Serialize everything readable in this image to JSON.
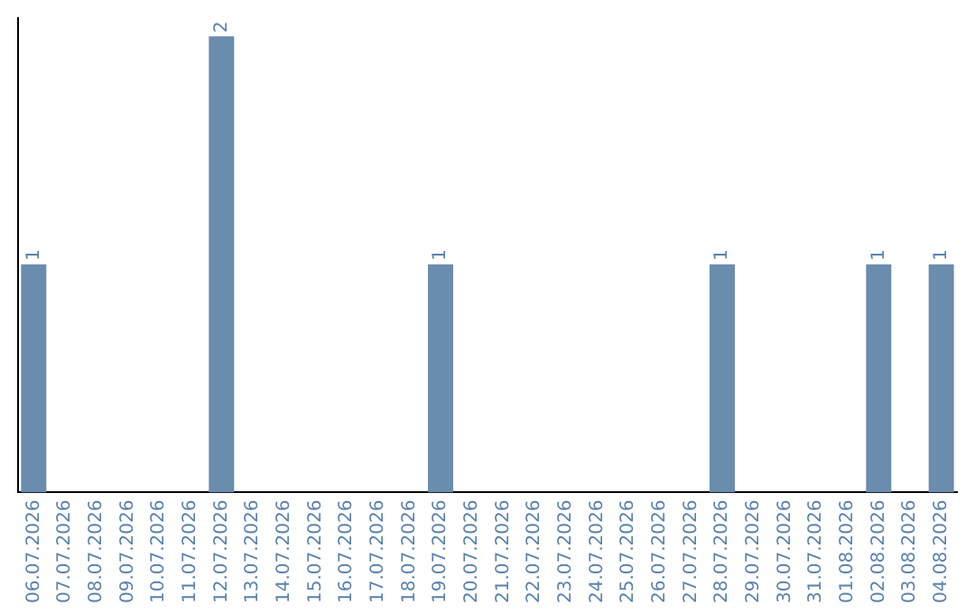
{
  "chart_data": {
    "type": "bar",
    "categories": [
      "06.07.2026",
      "07.07.2026",
      "08.07.2026",
      "09.07.2026",
      "10.07.2026",
      "11.07.2026",
      "12.07.2026",
      "13.07.2026",
      "14.07.2026",
      "15.07.2026",
      "16.07.2026",
      "17.07.2026",
      "18.07.2026",
      "19.07.2026",
      "20.07.2026",
      "21.07.2026",
      "22.07.2026",
      "23.07.2026",
      "24.07.2026",
      "25.07.2026",
      "26.07.2026",
      "27.07.2026",
      "28.07.2026",
      "29.07.2026",
      "30.07.2026",
      "31.07.2026",
      "01.08.2026",
      "02.08.2026",
      "03.08.2026",
      "04.08.2026"
    ],
    "values": [
      1,
      0,
      0,
      0,
      0,
      0,
      2,
      0,
      0,
      0,
      0,
      0,
      0,
      1,
      0,
      0,
      0,
      0,
      0,
      0,
      0,
      0,
      1,
      0,
      0,
      0,
      0,
      1,
      0,
      1
    ],
    "value_labels": [
      "1",
      null,
      null,
      null,
      null,
      null,
      "2",
      null,
      null,
      null,
      null,
      null,
      null,
      "1",
      null,
      null,
      null,
      null,
      null,
      null,
      null,
      null,
      "1",
      null,
      null,
      null,
      null,
      "1",
      null,
      "1"
    ],
    "color": "#6a8cad",
    "tick_labels": "x",
    "grid": false,
    "legend": false
  }
}
